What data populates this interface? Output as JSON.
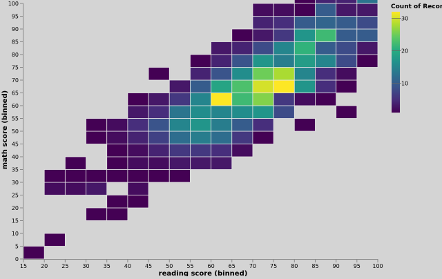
{
  "chart_data": {
    "type": "heatmap",
    "xlabel": "reading score (binned)",
    "ylabel": "math score (binned)",
    "xlim": [
      15,
      100
    ],
    "ylim": [
      0,
      100
    ],
    "bin_step": 5,
    "x_ticks": [
      15,
      20,
      25,
      30,
      35,
      40,
      45,
      50,
      55,
      60,
      65,
      70,
      75,
      80,
      85,
      90,
      95,
      100
    ],
    "y_ticks": [
      0,
      5,
      10,
      15,
      20,
      25,
      30,
      35,
      40,
      45,
      50,
      55,
      60,
      65,
      70,
      75,
      80,
      85,
      90,
      95,
      100
    ],
    "legend": {
      "title": "Count of Records",
      "ticks": [
        10,
        20,
        30
      ],
      "min": 1,
      "max": 32,
      "placement": "top-right"
    },
    "grid": false,
    "colors": {
      "background": "#d4d4d4",
      "cell_stroke": "#e6e6e6",
      "axis": "#888888",
      "text": "#000000"
    },
    "cells": [
      [
        15,
        0,
        1
      ],
      [
        20,
        5,
        1
      ],
      [
        30,
        15,
        1
      ],
      [
        35,
        15,
        1
      ],
      [
        35,
        20,
        1
      ],
      [
        40,
        20,
        1
      ],
      [
        20,
        25,
        2
      ],
      [
        25,
        25,
        2
      ],
      [
        30,
        25,
        3
      ],
      [
        40,
        25,
        2
      ],
      [
        20,
        30,
        1
      ],
      [
        25,
        30,
        1
      ],
      [
        30,
        30,
        1
      ],
      [
        35,
        30,
        1
      ],
      [
        40,
        30,
        1
      ],
      [
        45,
        30,
        1
      ],
      [
        50,
        30,
        1
      ],
      [
        25,
        35,
        1
      ],
      [
        35,
        35,
        1
      ],
      [
        40,
        35,
        2
      ],
      [
        45,
        35,
        2
      ],
      [
        50,
        35,
        3
      ],
      [
        55,
        35,
        3
      ],
      [
        60,
        35,
        3
      ],
      [
        35,
        40,
        1
      ],
      [
        40,
        40,
        2
      ],
      [
        45,
        40,
        4
      ],
      [
        50,
        40,
        6
      ],
      [
        55,
        40,
        6
      ],
      [
        60,
        40,
        5
      ],
      [
        65,
        40,
        2
      ],
      [
        30,
        45,
        1
      ],
      [
        35,
        45,
        2
      ],
      [
        40,
        45,
        4
      ],
      [
        45,
        45,
        7
      ],
      [
        50,
        45,
        12
      ],
      [
        55,
        45,
        14
      ],
      [
        60,
        45,
        12
      ],
      [
        65,
        45,
        6
      ],
      [
        70,
        45,
        1
      ],
      [
        30,
        50,
        1
      ],
      [
        35,
        50,
        2
      ],
      [
        40,
        50,
        5
      ],
      [
        45,
        50,
        9
      ],
      [
        50,
        50,
        15
      ],
      [
        55,
        50,
        17
      ],
      [
        60,
        50,
        14
      ],
      [
        65,
        50,
        10
      ],
      [
        70,
        50,
        5
      ],
      [
        80,
        50,
        1
      ],
      [
        40,
        55,
        3
      ],
      [
        45,
        55,
        5
      ],
      [
        50,
        55,
        13
      ],
      [
        55,
        55,
        16
      ],
      [
        60,
        55,
        15
      ],
      [
        65,
        55,
        16
      ],
      [
        70,
        55,
        17
      ],
      [
        75,
        55,
        8
      ],
      [
        90,
        55,
        1
      ],
      [
        40,
        60,
        1
      ],
      [
        45,
        60,
        3
      ],
      [
        50,
        60,
        6
      ],
      [
        55,
        60,
        15
      ],
      [
        60,
        60,
        32
      ],
      [
        65,
        60,
        22
      ],
      [
        70,
        60,
        26
      ],
      [
        75,
        60,
        6
      ],
      [
        80,
        60,
        2
      ],
      [
        85,
        60,
        1
      ],
      [
        50,
        65,
        3
      ],
      [
        55,
        65,
        10
      ],
      [
        60,
        65,
        19
      ],
      [
        65,
        65,
        23
      ],
      [
        70,
        65,
        30
      ],
      [
        75,
        65,
        32
      ],
      [
        80,
        65,
        17
      ],
      [
        85,
        65,
        5
      ],
      [
        90,
        65,
        1
      ],
      [
        45,
        70,
        1
      ],
      [
        55,
        70,
        4
      ],
      [
        60,
        70,
        9
      ],
      [
        65,
        70,
        16
      ],
      [
        70,
        70,
        25
      ],
      [
        75,
        70,
        28
      ],
      [
        80,
        70,
        15
      ],
      [
        85,
        70,
        5
      ],
      [
        90,
        70,
        2
      ],
      [
        55,
        75,
        1
      ],
      [
        60,
        75,
        4
      ],
      [
        65,
        75,
        9
      ],
      [
        70,
        75,
        17
      ],
      [
        75,
        75,
        14
      ],
      [
        80,
        75,
        18
      ],
      [
        85,
        75,
        15
      ],
      [
        90,
        75,
        8
      ],
      [
        95,
        75,
        1
      ],
      [
        60,
        80,
        3
      ],
      [
        65,
        80,
        4
      ],
      [
        70,
        80,
        8
      ],
      [
        75,
        80,
        15
      ],
      [
        80,
        80,
        21
      ],
      [
        85,
        80,
        10
      ],
      [
        90,
        80,
        8
      ],
      [
        95,
        80,
        3
      ],
      [
        65,
        85,
        1
      ],
      [
        70,
        85,
        3
      ],
      [
        75,
        85,
        6
      ],
      [
        80,
        85,
        17
      ],
      [
        85,
        85,
        22
      ],
      [
        90,
        85,
        10
      ],
      [
        95,
        85,
        10
      ],
      [
        70,
        90,
        4
      ],
      [
        75,
        90,
        5
      ],
      [
        80,
        90,
        10
      ],
      [
        85,
        90,
        11
      ],
      [
        90,
        90,
        10
      ],
      [
        95,
        90,
        8
      ],
      [
        70,
        95,
        2
      ],
      [
        75,
        95,
        2
      ],
      [
        80,
        95,
        1
      ],
      [
        85,
        95,
        10
      ],
      [
        90,
        95,
        3
      ],
      [
        95,
        95,
        3
      ],
      [
        80,
        100,
        1
      ],
      [
        85,
        100,
        4
      ],
      [
        90,
        100,
        4
      ],
      [
        95,
        100,
        13
      ]
    ]
  }
}
